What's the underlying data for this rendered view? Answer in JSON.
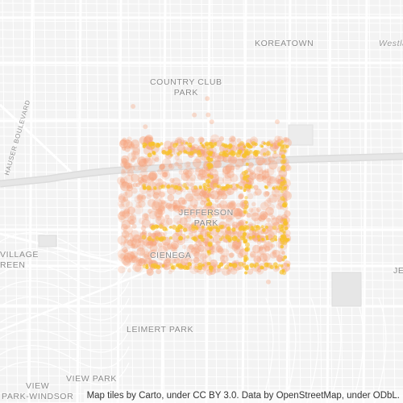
{
  "map": {
    "labels": {
      "koreatown": "KOREATOWN",
      "westlake": "Westlake",
      "country_club_1": "COUNTRY CLUB",
      "country_club_2": "PARK",
      "jefferson_1": "JEFFERSON",
      "jefferson_2": "PARK",
      "cienega": "CIENEGA",
      "village_1": "VILLAGE",
      "village_2": "REEN",
      "leimert": "LEIMERT PARK",
      "view_park": "VIEW PARK",
      "view_park_windsor_1": "VIEW",
      "view_park_windsor_2": "PARK-WINDSOR",
      "hauser": "HAUSER BOULEVARD",
      "east_edge": "JE"
    },
    "attribution": "Map tiles by Carto, under CC BY 3.0. Data by OpenStreetMap, under ODbL.",
    "colors": {
      "background": "#f3f3f3",
      "road": "#ffffff",
      "freeway": "#e6e6e6",
      "heat_low": "#f6a27b",
      "heat_high": "#f7c12b"
    }
  }
}
